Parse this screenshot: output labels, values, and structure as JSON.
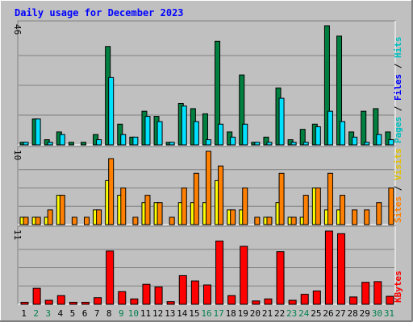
{
  "title": "Daily usage for December 2023",
  "colors": {
    "background": "#c0c0c0",
    "title": "#0000ff",
    "hits": "#008040",
    "files": "#00e0ff",
    "pages": "#00c0c0",
    "visits": "#ff8000",
    "sites": "#ffff00",
    "kbytes": "#ff0000",
    "weekday_label": "#000000",
    "weekend_label": "#00804d"
  },
  "chart_data": [
    {
      "type": "bar",
      "panel": "hits-files-pages",
      "ymax_label": "46",
      "legend": [
        "Pages",
        "Files",
        "Hits"
      ],
      "categories": [
        "1",
        "2",
        "3",
        "4",
        "5",
        "6",
        "7",
        "8",
        "9",
        "10",
        "11",
        "12",
        "13",
        "14",
        "15",
        "16",
        "17",
        "18",
        "19",
        "20",
        "21",
        "22",
        "23",
        "24",
        "25",
        "26",
        "27",
        "28",
        "29",
        "30",
        "31"
      ],
      "series": [
        {
          "name": "Hits",
          "values": [
            1,
            10,
            2,
            5,
            1,
            1,
            4,
            38,
            8,
            3,
            13,
            11,
            1,
            16,
            14,
            12,
            40,
            5,
            27,
            1,
            3,
            22,
            2,
            6,
            8,
            46,
            42,
            5,
            13,
            14,
            5
          ]
        },
        {
          "name": "Files",
          "values": [
            1,
            10,
            1,
            4,
            0,
            0,
            2,
            26,
            4,
            3,
            11,
            9,
            1,
            15,
            9,
            2,
            8,
            3,
            8,
            1,
            1,
            18,
            1,
            1,
            7,
            13,
            9,
            3,
            1,
            4,
            2
          ]
        }
      ],
      "ylim": [
        0,
        46
      ]
    },
    {
      "type": "bar",
      "panel": "visits-sites",
      "ymax_label": "10",
      "legend": [
        "Sites",
        "Visits"
      ],
      "categories": [
        "1",
        "2",
        "3",
        "4",
        "5",
        "6",
        "7",
        "8",
        "9",
        "10",
        "11",
        "12",
        "13",
        "14",
        "15",
        "16",
        "17",
        "18",
        "19",
        "20",
        "21",
        "22",
        "23",
        "24",
        "25",
        "26",
        "27",
        "28",
        "29",
        "30",
        "31"
      ],
      "series": [
        {
          "name": "Visits",
          "values": [
            1,
            1,
            2,
            4,
            1,
            1,
            2,
            9,
            5,
            1,
            4,
            3,
            1,
            5,
            7,
            10,
            8,
            2,
            5,
            1,
            1,
            7,
            1,
            4,
            5,
            7,
            4,
            2,
            2,
            3,
            5
          ]
        },
        {
          "name": "Sites",
          "values": [
            1,
            1,
            1,
            4,
            0,
            0,
            2,
            6,
            4,
            0,
            3,
            3,
            0,
            3,
            3,
            3,
            6,
            2,
            2,
            0,
            1,
            3,
            1,
            1,
            5,
            2,
            2,
            0,
            0,
            0,
            0
          ]
        }
      ],
      "ylim": [
        0,
        10
      ]
    },
    {
      "type": "bar",
      "panel": "kbytes",
      "ymax_label": "11",
      "legend": [
        "KBytes"
      ],
      "categories": [
        "1",
        "2",
        "3",
        "4",
        "5",
        "6",
        "7",
        "8",
        "9",
        "10",
        "11",
        "12",
        "13",
        "14",
        "15",
        "16",
        "17",
        "18",
        "19",
        "20",
        "21",
        "22",
        "23",
        "24",
        "25",
        "26",
        "27",
        "28",
        "29",
        "30",
        "31"
      ],
      "series": [
        {
          "name": "KBytes",
          "values": [
            0.3,
            2.4,
            0.6,
            1.3,
            0.3,
            0.3,
            1.0,
            8.0,
            1.9,
            0.8,
            3.0,
            2.6,
            0.4,
            4.3,
            3.5,
            2.9,
            9.5,
            1.3,
            8.7,
            0.5,
            0.8,
            7.9,
            0.6,
            1.5,
            2.0,
            11,
            10.6,
            1.1,
            3.3,
            3.4,
            1.2
          ]
        }
      ],
      "ylim": [
        0,
        11
      ]
    }
  ],
  "weekend_days": [
    "2",
    "3",
    "9",
    "10",
    "16",
    "17",
    "23",
    "24",
    "30",
    "31"
  ]
}
